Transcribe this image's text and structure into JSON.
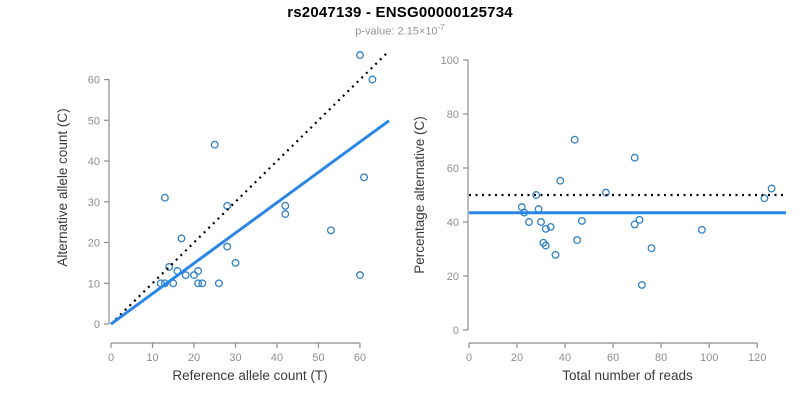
{
  "header": {
    "title": "rs2047139 - ENSG00000125734",
    "subtitle_prefix": "p-value: ",
    "p_value_mantissa": "2.15",
    "p_value_times": "×10",
    "p_value_exponent": "-7"
  },
  "colors": {
    "point": "#3182C4",
    "fit_line": "#2B85E6",
    "dashed_line": "#000000",
    "axis": "#8E8E8E",
    "tick_label": "#8E8E8E",
    "axis_title": "#3C3C3C",
    "title": "#000000",
    "subtitle": "#949494"
  },
  "chart_data": [
    {
      "type": "scatter",
      "panel": "left",
      "xlabel": "Reference allele count (T)",
      "ylabel": "Alternative allele count (C)",
      "xlim": [
        0,
        67
      ],
      "ylim": [
        0,
        67
      ],
      "xticks": [
        0,
        10,
        20,
        30,
        40,
        50,
        60
      ],
      "yticks": [
        0,
        10,
        20,
        30,
        40,
        50,
        60
      ],
      "grid": false,
      "legend": null,
      "points": [
        [
          12,
          10
        ],
        [
          13,
          10
        ],
        [
          13,
          31
        ],
        [
          14,
          14
        ],
        [
          15,
          10
        ],
        [
          16,
          13
        ],
        [
          17,
          21
        ],
        [
          18,
          12
        ],
        [
          20,
          12
        ],
        [
          21,
          10
        ],
        [
          21,
          13
        ],
        [
          22,
          10
        ],
        [
          25,
          44
        ],
        [
          26,
          10
        ],
        [
          28,
          19
        ],
        [
          28,
          29
        ],
        [
          30,
          15
        ],
        [
          42,
          27
        ],
        [
          42,
          29
        ],
        [
          53,
          23
        ],
        [
          60,
          12
        ],
        [
          60,
          66
        ],
        [
          61,
          36
        ],
        [
          63,
          60
        ]
      ],
      "lines": [
        {
          "name": "identity-line",
          "style": "dashed",
          "color": "#000000",
          "x1": 0,
          "y1": 0,
          "x2": 67,
          "y2": 67
        },
        {
          "name": "fit-line",
          "style": "solid",
          "color": "#2B85E6",
          "x1": 0,
          "y1": 0,
          "x2": 67,
          "y2": 49.9
        }
      ]
    },
    {
      "type": "scatter",
      "panel": "right",
      "xlabel": "Total number of reads",
      "ylabel": "Percentage alternative (C)",
      "xlim": [
        0,
        132
      ],
      "ylim": [
        0,
        100
      ],
      "xticks": [
        0,
        20,
        40,
        60,
        80,
        100,
        120
      ],
      "yticks": [
        0,
        20,
        40,
        60,
        80,
        100
      ],
      "grid": false,
      "legend": null,
      "points": [
        [
          22,
          45.5
        ],
        [
          23,
          43.5
        ],
        [
          25,
          40
        ],
        [
          28,
          50
        ],
        [
          29,
          44.8
        ],
        [
          30,
          40
        ],
        [
          31,
          32.3
        ],
        [
          32,
          37.5
        ],
        [
          32,
          31.3
        ],
        [
          34,
          38.2
        ],
        [
          36,
          27.8
        ],
        [
          38,
          55.3
        ],
        [
          44,
          70.5
        ],
        [
          45,
          33.3
        ],
        [
          47,
          40.4
        ],
        [
          57,
          50.9
        ],
        [
          69,
          63.8
        ],
        [
          69,
          39.1
        ],
        [
          71,
          40.8
        ],
        [
          72,
          16.7
        ],
        [
          76,
          30.3
        ],
        [
          97,
          37.1
        ],
        [
          123,
          48.8
        ],
        [
          126,
          52.4
        ]
      ],
      "lines": [
        {
          "name": "expected-50pct-line",
          "style": "dashed",
          "color": "#000000",
          "x1": 0,
          "y1": 50,
          "x2": 132,
          "y2": 50
        },
        {
          "name": "mean-percentage-line",
          "style": "solid",
          "color": "#2B85E6",
          "x1": 0,
          "y1": 43.4,
          "x2": 132,
          "y2": 43.4
        }
      ]
    }
  ]
}
